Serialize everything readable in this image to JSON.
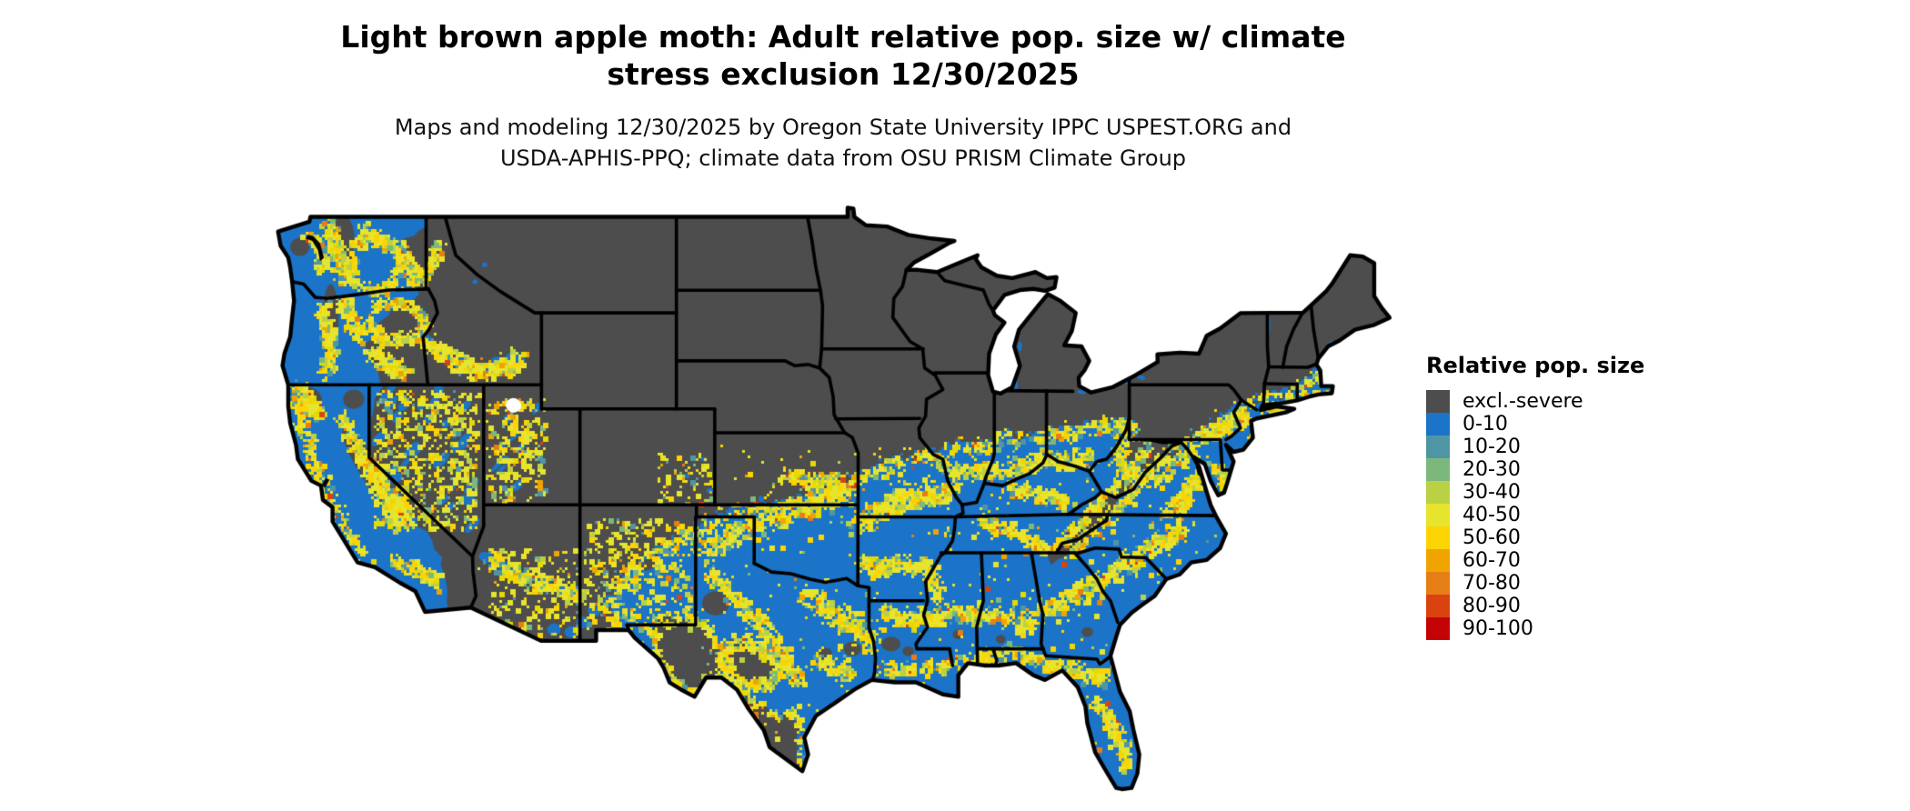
{
  "header": {
    "title_line1": "Light brown apple moth: Adult relative pop. size w/ climate",
    "title_line2": "stress exclusion 12/30/2025",
    "subtitle_line1": "Maps and modeling 12/30/2025 by Oregon State University IPPC USPEST.ORG and",
    "subtitle_line2": "USDA-APHIS-PPQ; climate data from OSU PRISM Climate Group"
  },
  "legend": {
    "title": "Relative pop. size",
    "items": [
      {
        "label": "excl.-severe",
        "color": "#4d4d4d"
      },
      {
        "label": "0-10",
        "color": "#1b74c8"
      },
      {
        "label": "10-20",
        "color": "#4f96a5"
      },
      {
        "label": "20-30",
        "color": "#7cb87c"
      },
      {
        "label": "30-40",
        "color": "#bad145"
      },
      {
        "label": "40-50",
        "color": "#e7e42e"
      },
      {
        "label": "50-60",
        "color": "#fcd403"
      },
      {
        "label": "60-70",
        "color": "#f0a400"
      },
      {
        "label": "70-80",
        "color": "#e67e16"
      },
      {
        "label": "80-90",
        "color": "#da4310"
      },
      {
        "label": "90-100",
        "color": "#c40404"
      }
    ]
  },
  "map": {
    "background_color": "#ffffff",
    "excluded_land_color": "#4d4d4d",
    "state_border_color": "#000000",
    "water_color": "#ffffff",
    "low_pop_fill_color": "#1b74c8"
  }
}
